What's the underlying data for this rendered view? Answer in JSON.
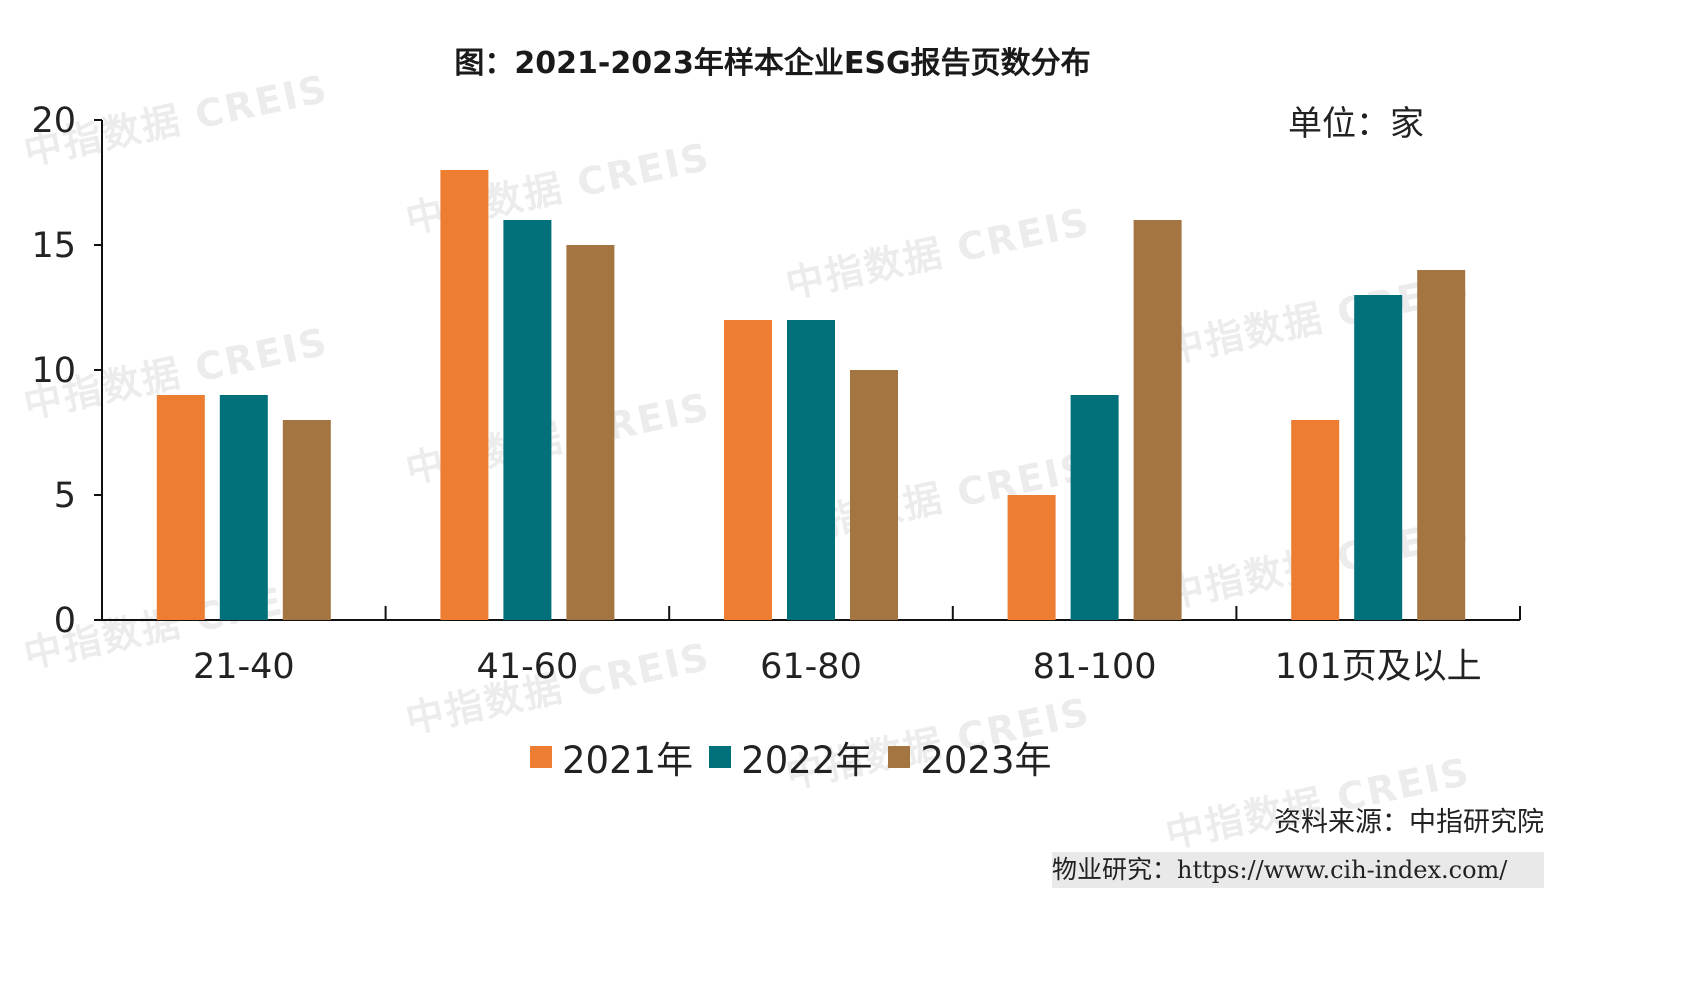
{
  "chart_data": {
    "type": "bar",
    "title": "图：2021-2023年样本企业ESG报告页数分布",
    "unit_label": "单位：家",
    "categories": [
      "21-40",
      "41-60",
      "61-80",
      "81-100",
      "101页及以上"
    ],
    "series": [
      {
        "name": "2021年",
        "values": [
          9,
          18,
          12,
          5,
          8
        ],
        "color": "#ED7D31"
      },
      {
        "name": "2022年",
        "values": [
          9,
          16,
          12,
          9,
          13
        ],
        "color": "#00707A"
      },
      {
        "name": "2023年",
        "values": [
          8,
          15,
          10,
          16,
          14
        ],
        "color": "#A47540"
      }
    ],
    "ylim": [
      0,
      20
    ],
    "yticks": [
      0,
      5,
      10,
      15,
      20
    ],
    "grid": false,
    "legend_position": "bottom"
  },
  "watermark": "中指数据 CREIS",
  "source": "资料来源：中指研究院",
  "footer": {
    "prefix": "物业研究：",
    "url": "https://www.cih-index.com/"
  }
}
